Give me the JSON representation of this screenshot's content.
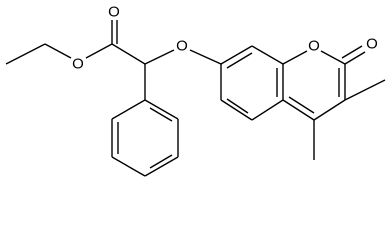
{
  "nodes": [
    {
      "label": "O"
    },
    {
      "label": "O"
    },
    {
      "label": "O"
    },
    {
      "label": "O"
    },
    {
      "label": "O"
    }
  ]
}
